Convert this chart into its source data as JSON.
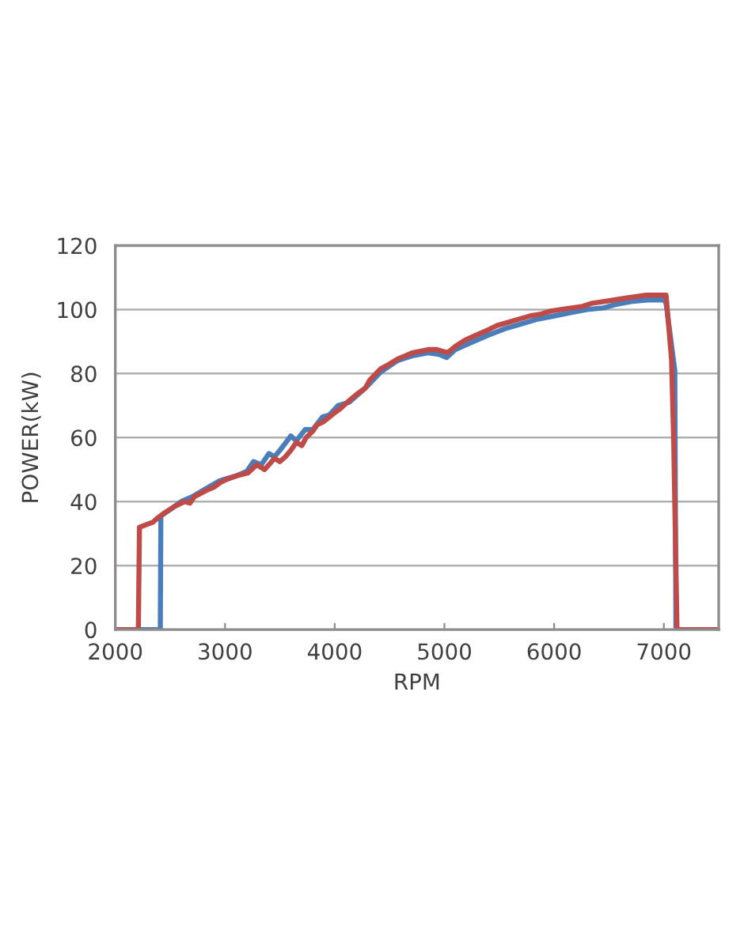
{
  "chart_data": {
    "type": "line",
    "xlabel": "RPM",
    "ylabel": "POWER(kW)",
    "xlim": [
      2000,
      7500
    ],
    "xticks": [
      2000,
      3000,
      4000,
      5000,
      6000,
      7000
    ],
    "ylim": [
      0,
      120
    ],
    "yticks": [
      0,
      20,
      40,
      60,
      80,
      100,
      120
    ],
    "grid": "y",
    "series": [
      {
        "color": "#4a7ebb",
        "x": [
          2000,
          2410,
          2415,
          2500,
          2600,
          2700,
          2800,
          2950,
          3000,
          3100,
          3200,
          3260,
          3330,
          3400,
          3450,
          3500,
          3600,
          3650,
          3730,
          3800,
          3890,
          3950,
          4030,
          4130,
          4280,
          4420,
          4570,
          4700,
          4850,
          4950,
          5020,
          5100,
          5200,
          5300,
          5400,
          5550,
          5700,
          5850,
          6000,
          6150,
          6300,
          6450,
          6550,
          6700,
          6850,
          7000,
          7020,
          7100,
          7110,
          7500
        ],
        "values": [
          0,
          0,
          35.5,
          37.5,
          40,
          41.5,
          43.5,
          46.5,
          47,
          48,
          49.5,
          52.5,
          51.5,
          55,
          54,
          56,
          60.5,
          59,
          62.5,
          62.5,
          66.5,
          67,
          70,
          71,
          75.5,
          80.5,
          84,
          85.5,
          86.5,
          86,
          85,
          87.5,
          89,
          90.5,
          92,
          94,
          95.5,
          97,
          98,
          99,
          100,
          100.5,
          101.5,
          102.5,
          103,
          103,
          102,
          81,
          0,
          0
        ]
      },
      {
        "color": "#be4b48",
        "x": [
          2000,
          2210,
          2220,
          2300,
          2340,
          2390,
          2450,
          2540,
          2630,
          2680,
          2720,
          2830,
          2900,
          2960,
          3020,
          3100,
          3210,
          3290,
          3360,
          3400,
          3450,
          3500,
          3550,
          3600,
          3650,
          3700,
          3740,
          3800,
          3840,
          3900,
          3990,
          4050,
          4130,
          4200,
          4280,
          4320,
          4420,
          4500,
          4570,
          4640,
          4710,
          4780,
          4860,
          4930,
          5030,
          5100,
          5190,
          5290,
          5390,
          5480,
          5580,
          5680,
          5780,
          5870,
          5970,
          6060,
          6160,
          6260,
          6350,
          6450,
          6550,
          6640,
          6740,
          6840,
          6920,
          7020,
          7070,
          7090,
          7120,
          7500
        ],
        "values": [
          0,
          0,
          32,
          33,
          33.5,
          35,
          36.5,
          38.5,
          40,
          39.5,
          41.5,
          43.5,
          44.5,
          46,
          47,
          48,
          49,
          51.5,
          50,
          51.5,
          53.5,
          52.5,
          54,
          56,
          58.5,
          57.5,
          60,
          62,
          64,
          65,
          67.5,
          69,
          71.5,
          73.5,
          75.5,
          78,
          81.5,
          83,
          84.5,
          85.5,
          86.5,
          87,
          87.5,
          87.5,
          86.5,
          88.5,
          90.5,
          92,
          93.5,
          95,
          96,
          97,
          98,
          98.5,
          99.5,
          100,
          100.5,
          101,
          102,
          102.5,
          103,
          103.5,
          104,
          104.5,
          104.5,
          104.5,
          84.5,
          58.5,
          0,
          0
        ]
      }
    ]
  }
}
